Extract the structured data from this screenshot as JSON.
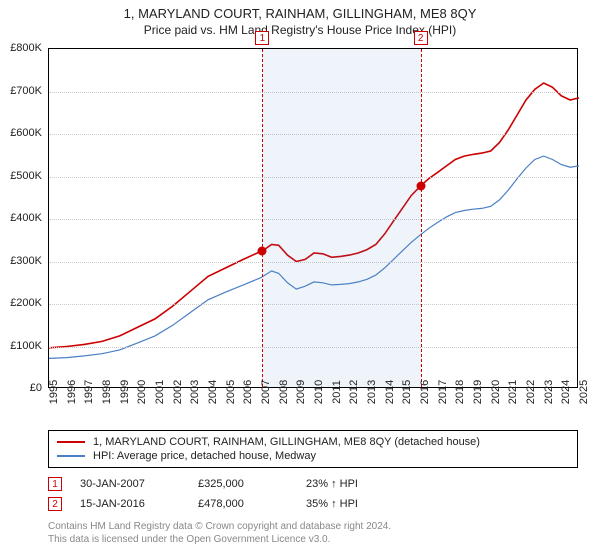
{
  "title": "1, MARYLAND COURT, RAINHAM, GILLINGHAM, ME8 8QY",
  "subtitle": "Price paid vs. HM Land Registry's House Price Index (HPI)",
  "chart": {
    "type": "line",
    "background_color": "#ffffff",
    "grid_color": "#cccccc",
    "border_color": "#000000",
    "x": {
      "min": 1995,
      "max": 2025,
      "ticks": [
        1995,
        1996,
        1997,
        1998,
        1999,
        2000,
        2001,
        2002,
        2003,
        2004,
        2005,
        2006,
        2007,
        2008,
        2009,
        2010,
        2011,
        2012,
        2013,
        2014,
        2015,
        2016,
        2017,
        2018,
        2019,
        2020,
        2021,
        2022,
        2023,
        2024,
        2025
      ]
    },
    "y": {
      "min": 0,
      "max": 800000,
      "ticks": [
        0,
        100000,
        200000,
        300000,
        400000,
        500000,
        600000,
        700000,
        800000
      ],
      "tick_labels": [
        "£0",
        "£100K",
        "£200K",
        "£300K",
        "£400K",
        "£500K",
        "£600K",
        "£700K",
        "£800K"
      ]
    },
    "shade": {
      "from_year": 2007.08,
      "to_year": 2016.04,
      "color": "rgba(100,150,220,0.10)"
    },
    "vlines": [
      {
        "id": "1",
        "year": 2007.08,
        "color": "#cc0000"
      },
      {
        "id": "2",
        "year": 2016.04,
        "color": "#cc0000"
      }
    ],
    "series": [
      {
        "name": "price_paid",
        "label": "1, MARYLAND COURT, RAINHAM, GILLINGHAM, ME8 8QY (detached house)",
        "color": "#cc0000",
        "line_width": 1.6,
        "points": [
          [
            1995.0,
            97000
          ],
          [
            1996.0,
            100000
          ],
          [
            1997.0,
            105000
          ],
          [
            1998.0,
            112000
          ],
          [
            1999.0,
            125000
          ],
          [
            2000.0,
            145000
          ],
          [
            2001.0,
            165000
          ],
          [
            2002.0,
            195000
          ],
          [
            2003.0,
            230000
          ],
          [
            2004.0,
            265000
          ],
          [
            2005.0,
            285000
          ],
          [
            2006.0,
            305000
          ],
          [
            2007.0,
            324000
          ],
          [
            2007.08,
            325000
          ],
          [
            2007.6,
            340000
          ],
          [
            2008.0,
            338000
          ],
          [
            2008.5,
            315000
          ],
          [
            2009.0,
            300000
          ],
          [
            2009.5,
            305000
          ],
          [
            2010.0,
            320000
          ],
          [
            2010.5,
            318000
          ],
          [
            2011.0,
            310000
          ],
          [
            2011.5,
            312000
          ],
          [
            2012.0,
            315000
          ],
          [
            2012.5,
            320000
          ],
          [
            2013.0,
            328000
          ],
          [
            2013.5,
            340000
          ],
          [
            2014.0,
            365000
          ],
          [
            2014.5,
            395000
          ],
          [
            2015.0,
            425000
          ],
          [
            2015.5,
            455000
          ],
          [
            2016.04,
            478000
          ],
          [
            2016.5,
            495000
          ],
          [
            2017.0,
            510000
          ],
          [
            2017.5,
            525000
          ],
          [
            2018.0,
            540000
          ],
          [
            2018.5,
            548000
          ],
          [
            2019.0,
            552000
          ],
          [
            2019.5,
            555000
          ],
          [
            2020.0,
            560000
          ],
          [
            2020.5,
            580000
          ],
          [
            2021.0,
            610000
          ],
          [
            2021.5,
            645000
          ],
          [
            2022.0,
            680000
          ],
          [
            2022.5,
            705000
          ],
          [
            2023.0,
            720000
          ],
          [
            2023.5,
            710000
          ],
          [
            2024.0,
            690000
          ],
          [
            2024.5,
            680000
          ],
          [
            2025.0,
            685000
          ]
        ]
      },
      {
        "name": "hpi",
        "label": "HPI: Average price, detached house, Medway",
        "color": "#4a7fc4",
        "line_width": 1.2,
        "points": [
          [
            1995.0,
            72000
          ],
          [
            1996.0,
            74000
          ],
          [
            1997.0,
            78000
          ],
          [
            1998.0,
            83000
          ],
          [
            1999.0,
            92000
          ],
          [
            2000.0,
            108000
          ],
          [
            2001.0,
            125000
          ],
          [
            2002.0,
            150000
          ],
          [
            2003.0,
            180000
          ],
          [
            2004.0,
            210000
          ],
          [
            2005.0,
            228000
          ],
          [
            2006.0,
            245000
          ],
          [
            2007.0,
            262000
          ],
          [
            2007.6,
            278000
          ],
          [
            2008.0,
            272000
          ],
          [
            2008.5,
            250000
          ],
          [
            2009.0,
            235000
          ],
          [
            2009.5,
            242000
          ],
          [
            2010.0,
            252000
          ],
          [
            2010.5,
            250000
          ],
          [
            2011.0,
            245000
          ],
          [
            2011.5,
            246000
          ],
          [
            2012.0,
            248000
          ],
          [
            2012.5,
            252000
          ],
          [
            2013.0,
            258000
          ],
          [
            2013.5,
            268000
          ],
          [
            2014.0,
            285000
          ],
          [
            2014.5,
            305000
          ],
          [
            2015.0,
            325000
          ],
          [
            2015.5,
            345000
          ],
          [
            2016.0,
            362000
          ],
          [
            2016.5,
            378000
          ],
          [
            2017.0,
            392000
          ],
          [
            2017.5,
            405000
          ],
          [
            2018.0,
            415000
          ],
          [
            2018.5,
            420000
          ],
          [
            2019.0,
            423000
          ],
          [
            2019.5,
            425000
          ],
          [
            2020.0,
            430000
          ],
          [
            2020.5,
            445000
          ],
          [
            2021.0,
            468000
          ],
          [
            2021.5,
            495000
          ],
          [
            2022.0,
            520000
          ],
          [
            2022.5,
            540000
          ],
          [
            2023.0,
            548000
          ],
          [
            2023.5,
            540000
          ],
          [
            2024.0,
            528000
          ],
          [
            2024.5,
            522000
          ],
          [
            2025.0,
            525000
          ]
        ]
      }
    ],
    "dots": [
      {
        "year": 2007.08,
        "value": 325000,
        "color": "#cc0000"
      },
      {
        "year": 2016.04,
        "value": 478000,
        "color": "#cc0000"
      }
    ]
  },
  "legend": {
    "line1_label": "1, MARYLAND COURT, RAINHAM, GILLINGHAM, ME8 8QY (detached house)",
    "line2_label": "HPI: Average price, detached house, Medway"
  },
  "transactions": [
    {
      "id": "1",
      "date": "30-JAN-2007",
      "price": "£325,000",
      "diff": "23% ↑ HPI"
    },
    {
      "id": "2",
      "date": "15-JAN-2016",
      "price": "£478,000",
      "diff": "35% ↑ HPI"
    }
  ],
  "attribution": {
    "line1": "Contains HM Land Registry data © Crown copyright and database right 2024.",
    "line2": "This data is licensed under the Open Government Licence v3.0."
  }
}
